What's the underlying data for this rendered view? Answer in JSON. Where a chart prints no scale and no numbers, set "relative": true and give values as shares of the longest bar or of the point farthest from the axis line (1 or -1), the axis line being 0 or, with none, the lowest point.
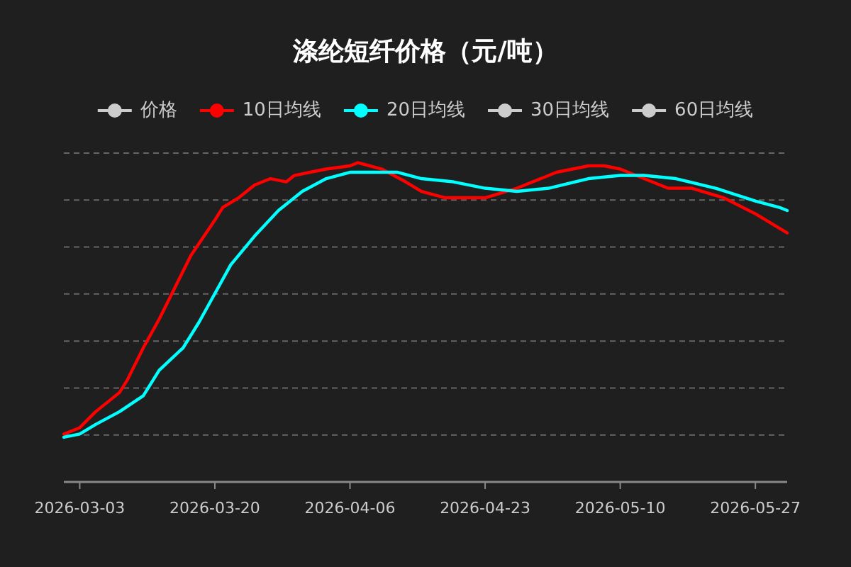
{
  "chart_data": {
    "type": "line",
    "title": "涤纶短纤价格（元/吨）",
    "relative": true,
    "legend": "top",
    "grid": "y",
    "line_style": "solid",
    "xlim": [
      "2026-03-01",
      "2026-05-31"
    ],
    "xticks": [
      "2026-03-03",
      "2026-03-20",
      "2026-04-06",
      "2026-04-23",
      "2026-05-10",
      "2026-05-27"
    ],
    "series": [
      {
        "name": "价格",
        "color": "#cccccc"
      },
      {
        "name": "10日均线",
        "color": "#ff0000",
        "x": [
          "2026-03-01",
          "2026-03-03",
          "2026-03-05",
          "2026-03-08",
          "2026-03-09",
          "2026-03-11",
          "2026-03-13",
          "2026-03-15",
          "2026-03-17",
          "2026-03-20",
          "2026-03-21",
          "2026-03-23",
          "2026-03-25",
          "2026-03-27",
          "2026-03-29",
          "2026-03-30",
          "2026-04-01",
          "2026-04-03",
          "2026-04-06",
          "2026-04-07",
          "2026-04-10",
          "2026-04-13",
          "2026-04-15",
          "2026-04-18",
          "2026-04-23",
          "2026-04-27",
          "2026-05-02",
          "2026-05-06",
          "2026-05-08",
          "2026-05-10",
          "2026-05-13",
          "2026-05-16",
          "2026-05-19",
          "2026-05-23",
          "2026-05-27",
          "2026-05-29",
          "2026-05-31"
        ],
        "values": [
          0.15,
          0.17,
          0.22,
          0.28,
          0.32,
          0.42,
          0.51,
          0.61,
          0.71,
          0.82,
          0.86,
          0.89,
          0.93,
          0.95,
          0.94,
          0.96,
          0.97,
          0.98,
          0.99,
          1,
          0.98,
          0.94,
          0.91,
          0.89,
          0.89,
          0.92,
          0.97,
          0.99,
          0.99,
          0.98,
          0.95,
          0.92,
          0.92,
          0.89,
          0.84,
          0.81,
          0.78
        ]
      },
      {
        "name": "20日均线",
        "color": "#00ffff",
        "x": [
          "2026-03-01",
          "2026-03-03",
          "2026-03-05",
          "2026-03-08",
          "2026-03-11",
          "2026-03-13",
          "2026-03-16",
          "2026-03-18",
          "2026-03-20",
          "2026-03-22",
          "2026-03-25",
          "2026-03-28",
          "2026-03-31",
          "2026-04-03",
          "2026-04-06",
          "2026-04-09",
          "2026-04-12",
          "2026-04-15",
          "2026-04-19",
          "2026-04-23",
          "2026-04-27",
          "2026-05-01",
          "2026-05-06",
          "2026-05-10",
          "2026-05-13",
          "2026-05-17",
          "2026-05-22",
          "2026-05-27",
          "2026-05-30",
          "2026-05-31"
        ],
        "values": [
          0.14,
          0.15,
          0.18,
          0.22,
          0.27,
          0.35,
          0.42,
          0.5,
          0.59,
          0.68,
          0.77,
          0.85,
          0.91,
          0.95,
          0.97,
          0.97,
          0.97,
          0.95,
          0.94,
          0.92,
          0.91,
          0.92,
          0.95,
          0.96,
          0.96,
          0.95,
          0.92,
          0.88,
          0.86,
          0.85
        ]
      },
      {
        "name": "30日均线",
        "color": "#cccccc"
      },
      {
        "name": "60日均线",
        "color": "#cccccc"
      }
    ]
  }
}
